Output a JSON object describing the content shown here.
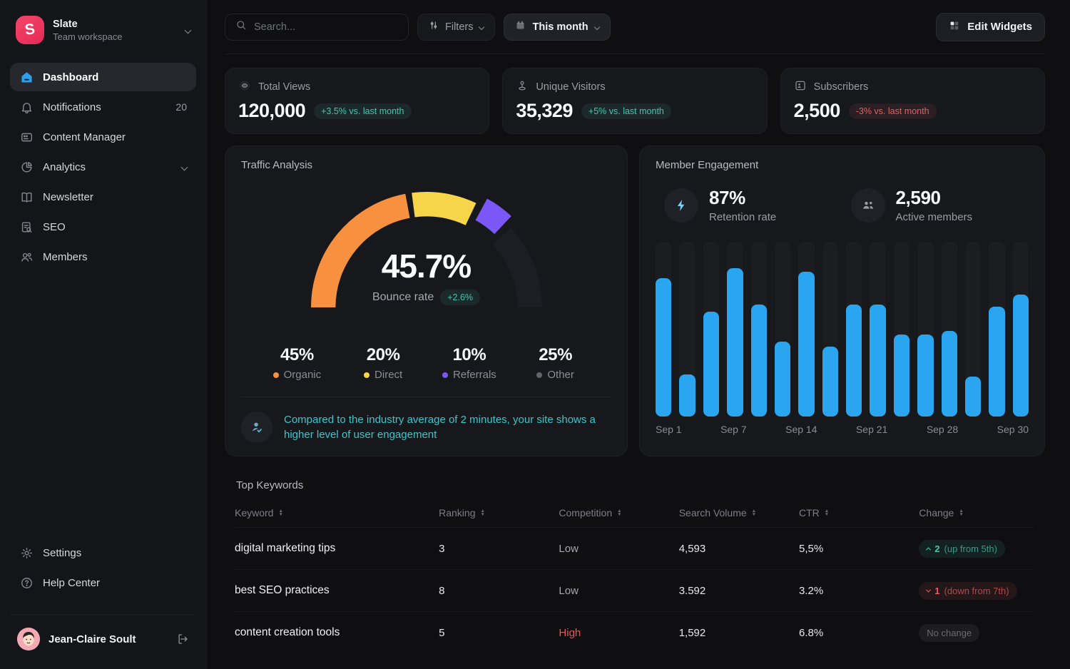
{
  "workspace": {
    "name": "Slate",
    "type": "Team workspace"
  },
  "sidebar": {
    "items": [
      {
        "label": "Dashboard"
      },
      {
        "label": "Notifications",
        "badge": "20"
      },
      {
        "label": "Content Manager"
      },
      {
        "label": "Analytics"
      },
      {
        "label": "Newsletter"
      },
      {
        "label": "SEO"
      },
      {
        "label": "Members"
      }
    ],
    "settings_label": "Settings",
    "help_label": "Help Center",
    "user_name": "Jean-Claire Soult"
  },
  "header": {
    "search_placeholder": "Search...",
    "filters_label": "Filters",
    "period_label": "This month",
    "edit_widgets_label": "Edit Widgets"
  },
  "stats": {
    "total_views": {
      "label": "Total Views",
      "value": "120,000",
      "change": "+3.5% vs. last month"
    },
    "unique_visitors": {
      "label": "Unique Visitors",
      "value": "35,329",
      "change": "+5% vs. last month"
    },
    "subscribers": {
      "label": "Subscribers",
      "value": "2,500",
      "change": "-3% vs. last month"
    }
  },
  "traffic": {
    "title": "Traffic Analysis",
    "center_value": "45.7%",
    "center_label": "Bounce rate",
    "center_change": "+2.6%",
    "legend": [
      {
        "value": "45%",
        "label": "Organic",
        "color": "#F7913F"
      },
      {
        "value": "20%",
        "label": "Direct",
        "color": "#F6D54A"
      },
      {
        "value": "10%",
        "label": "Referrals",
        "color": "#7C57F7"
      },
      {
        "value": "25%",
        "label": "Other",
        "color": "#62646B"
      }
    ],
    "note": "Compared to the industry average of 2 minutes, your site shows a higher level of user engagement"
  },
  "engagement": {
    "title": "Member Engagement",
    "retention_value": "87%",
    "retention_label": "Retention rate",
    "active_value": "2,590",
    "active_label": "Active members"
  },
  "keywords": {
    "title": "Top Keywords",
    "columns": [
      "Keyword",
      "Ranking",
      "Competition",
      "Search Volume",
      "CTR",
      "Change"
    ],
    "rows": [
      {
        "keyword": "digital marketing tips",
        "ranking": "3",
        "competition": "Low",
        "volume": "4,593",
        "ctr": "5,5%",
        "change_value": "2",
        "change_detail": "(up from 5th)",
        "change_type": "up"
      },
      {
        "keyword": "best SEO practices",
        "ranking": "8",
        "competition": "Low",
        "volume": "3.592",
        "ctr": "3.2%",
        "change_value": "1",
        "change_detail": "(down from 7th)",
        "change_type": "down"
      },
      {
        "keyword": "content creation tools",
        "ranking": "5",
        "competition": "High",
        "volume": "1,592",
        "ctr": "6.8%",
        "change_value": "",
        "change_detail": "No change",
        "change_type": "none"
      }
    ]
  },
  "chart_data": [
    {
      "type": "pie",
      "variant": "half-donut-gauge",
      "title": "Traffic Analysis",
      "center_value": "45.7%",
      "center_label": "Bounce rate",
      "center_change": "+2.6%",
      "slices": [
        {
          "label": "Organic",
          "value": 45,
          "color": "#F7913F"
        },
        {
          "label": "Direct",
          "value": 20,
          "color": "#F6D54A"
        },
        {
          "label": "Referrals",
          "value": 10,
          "color": "#7C57F7",
          "exploded": true
        },
        {
          "label": "Other",
          "value": 25,
          "color": "#1D1E23"
        }
      ]
    },
    {
      "type": "bar",
      "title": "Member Engagement",
      "x_tick_labels": [
        "Sep 1",
        "",
        "",
        "Sep 7",
        "",
        "",
        "Sep 14",
        "",
        "",
        "Sep 21",
        "",
        "",
        "Sep 28",
        "",
        "",
        "Sep 30"
      ],
      "values": [
        79,
        24,
        60,
        85,
        64,
        43,
        83,
        40,
        64,
        64,
        47,
        47,
        49,
        23,
        63,
        70
      ],
      "ylim": [
        0,
        100
      ],
      "bar_color": "#2AA5F0",
      "legend_position": "none",
      "grid": false
    }
  ]
}
